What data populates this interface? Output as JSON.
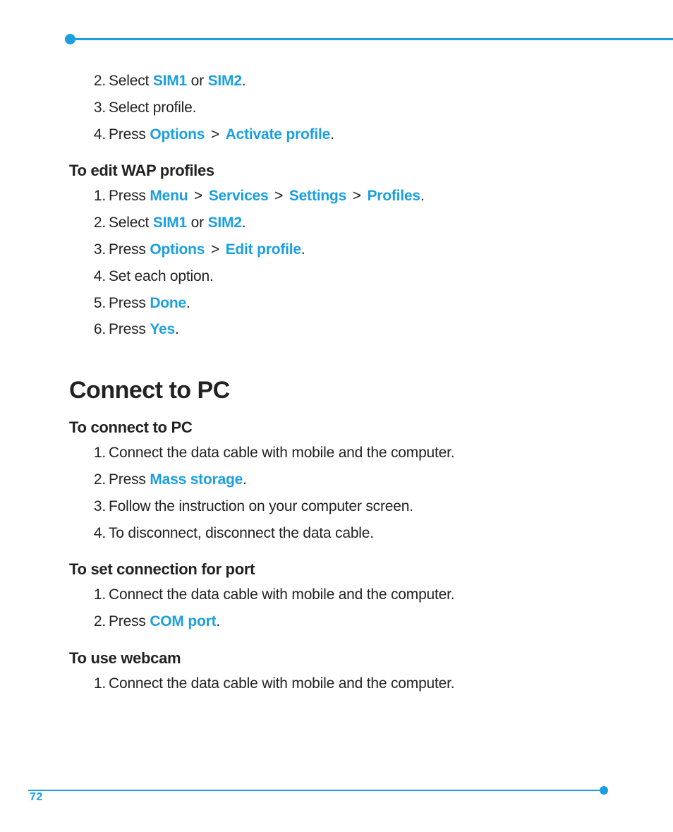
{
  "colors": {
    "accent": "#1b9fe0",
    "text": "#222222",
    "background": "#ffffff"
  },
  "typography": {
    "body_fontsize_pt": 16,
    "subheading_fontsize_pt": 17,
    "section_title_fontsize_pt": 26,
    "font_family": "Myriad Pro / sans-serif",
    "keyword_weight": 700
  },
  "page_number": "72",
  "intro_steps": {
    "start": 2,
    "items": [
      {
        "prefix": "Select ",
        "kw": [
          "SIM1",
          "SIM2"
        ],
        "sep_word": " or ",
        "suffix": "."
      },
      {
        "prefix": "Select profile.",
        "kw": [],
        "suffix": ""
      },
      {
        "prefix": "Press ",
        "kw": [
          "Options",
          "Activate profile"
        ],
        "sep": " > ",
        "suffix": "."
      }
    ]
  },
  "edit_wap": {
    "heading": "To edit WAP profiles",
    "items": [
      {
        "prefix": "Press ",
        "kw": [
          "Menu",
          "Services",
          "Settings",
          "Profiles"
        ],
        "sep": " > ",
        "suffix": "."
      },
      {
        "prefix": "Select ",
        "kw": [
          "SIM1",
          "SIM2"
        ],
        "sep_word": " or ",
        "suffix": "."
      },
      {
        "prefix": "Press ",
        "kw": [
          "Options",
          "Edit profile"
        ],
        "sep": " > ",
        "suffix": "."
      },
      {
        "prefix": "Set each option.",
        "kw": [],
        "suffix": ""
      },
      {
        "prefix": "Press ",
        "kw": [
          "Done"
        ],
        "suffix": "."
      },
      {
        "prefix": "Press ",
        "kw": [
          "Yes"
        ],
        "suffix": "."
      }
    ]
  },
  "connect_pc": {
    "title": "Connect to PC",
    "sections": [
      {
        "heading": "To connect to PC",
        "items": [
          {
            "prefix": "Connect the data cable with mobile and the computer.",
            "kw": [],
            "suffix": ""
          },
          {
            "prefix": "Press ",
            "kw": [
              "Mass storage"
            ],
            "suffix": "."
          },
          {
            "prefix": "Follow the instruction on your computer screen.",
            "kw": [],
            "suffix": ""
          },
          {
            "prefix": "To disconnect, disconnect the data cable.",
            "kw": [],
            "suffix": ""
          }
        ]
      },
      {
        "heading": "To set connection for port",
        "items": [
          {
            "prefix": "Connect the data cable with mobile and the computer.",
            "kw": [],
            "suffix": ""
          },
          {
            "prefix": "Press ",
            "kw": [
              "COM port"
            ],
            "suffix": "."
          }
        ]
      },
      {
        "heading": "To use webcam",
        "items": [
          {
            "prefix": "Connect the data cable with mobile and the computer.",
            "kw": [],
            "suffix": ""
          }
        ]
      }
    ]
  }
}
